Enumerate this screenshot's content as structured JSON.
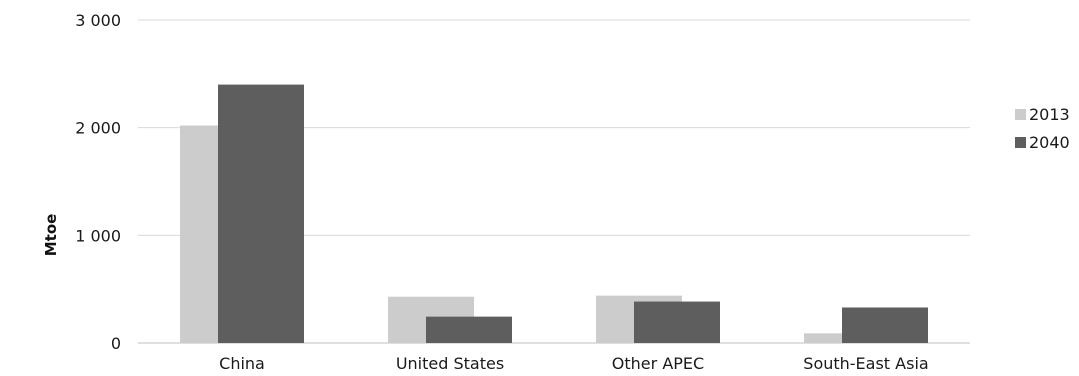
{
  "chart_data": {
    "type": "bar",
    "categories": [
      "China",
      "United States",
      "Other APEC",
      "South-East Asia"
    ],
    "series": [
      {
        "name": "2013",
        "values": [
          2020,
          430,
          440,
          90
        ],
        "color": "#cccccc"
      },
      {
        "name": "2040",
        "values": [
          2400,
          245,
          385,
          330
        ],
        "color": "#5e5e5e"
      }
    ],
    "title": "",
    "xlabel": "",
    "ylabel": "Mtoe",
    "ylim": [
      0,
      3000
    ],
    "yticks": [
      0,
      1000,
      2000,
      3000
    ],
    "ytick_labels": [
      "0",
      "1 000",
      "2 000",
      "3 000"
    ],
    "grid": true,
    "legend_position": "right"
  }
}
